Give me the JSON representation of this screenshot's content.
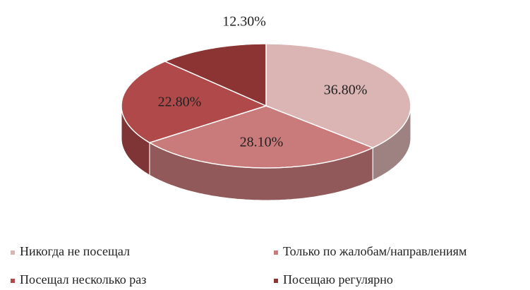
{
  "chart_data": {
    "type": "pie",
    "categories": [
      "Никогда не посещал",
      "Только по жалобам/направлениям",
      "Посещал несколько раз",
      "Посещаю регулярно"
    ],
    "values": [
      36.8,
      28.1,
      22.8,
      12.3
    ],
    "value_labels": [
      "36.80%",
      "28.10%",
      "22.80%",
      "12.30%"
    ],
    "colors": [
      "#dbb4b4",
      "#c97b7b",
      "#b04a4a",
      "#8c3434"
    ],
    "legend": "bottom"
  }
}
